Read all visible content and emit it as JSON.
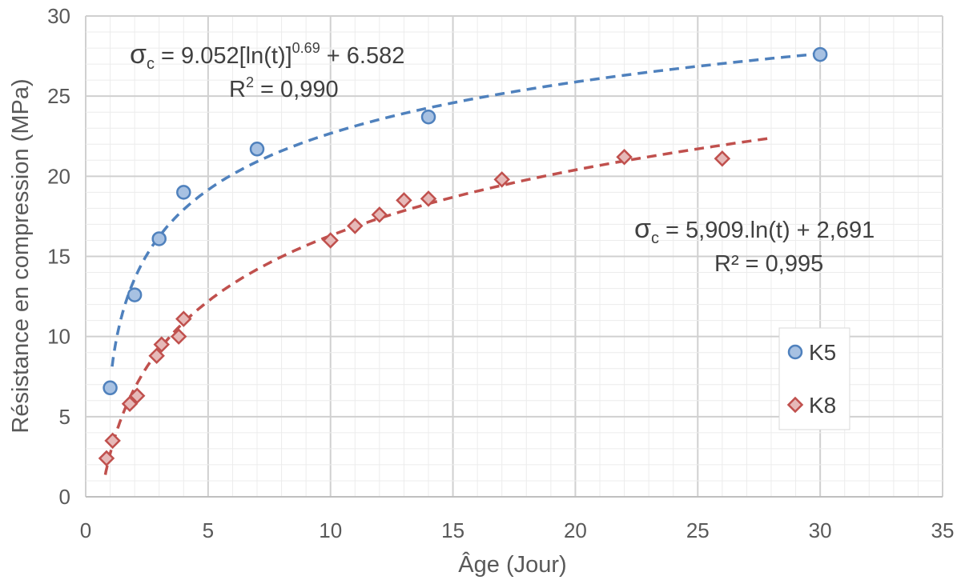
{
  "chart_data": {
    "type": "scatter",
    "xlabel": "Âge (Jour)",
    "ylabel": "Résistance en compression (MPa)",
    "xlim": [
      0,
      35
    ],
    "ylim": [
      0,
      30
    ],
    "x_ticks": [
      "0",
      "5",
      "10",
      "15",
      "20",
      "25",
      "30",
      "35"
    ],
    "y_ticks": [
      "0",
      "5",
      "10",
      "15",
      "20",
      "25",
      "30"
    ],
    "grid": "major and minor",
    "legend_position": "right",
    "series": [
      {
        "name": "K5",
        "marker": "circle",
        "color": "#4f81bd",
        "fill": "#a7c1e2",
        "points": [
          [
            1,
            6.8
          ],
          [
            2,
            12.6
          ],
          [
            3,
            16.1
          ],
          [
            4,
            19.0
          ],
          [
            7,
            21.7
          ],
          [
            14,
            23.7
          ],
          [
            30,
            27.6
          ]
        ],
        "trendline": {
          "kind": "power-log",
          "a": 9.052,
          "b": 0.69,
          "c": 6.582,
          "x_range": [
            1.08,
            30
          ],
          "equation": {
            "prefix": "σ",
            "sub": "c",
            "body": " = 9.052[ln(t)]",
            "sup": "0.69",
            "tail": " + 6.582"
          },
          "r2": {
            "base": "R",
            "sup": "2",
            "value": " = 0,990"
          }
        }
      },
      {
        "name": "K8",
        "marker": "diamond",
        "color": "#c0504d",
        "fill": "#e6b9b8",
        "points": [
          [
            0.85,
            2.4
          ],
          [
            1.1,
            3.5
          ],
          [
            1.8,
            5.8
          ],
          [
            2.1,
            6.3
          ],
          [
            2.9,
            8.8
          ],
          [
            3.1,
            9.5
          ],
          [
            3.8,
            10.0
          ],
          [
            4.0,
            11.1
          ],
          [
            10,
            16.0
          ],
          [
            11,
            16.9
          ],
          [
            12,
            17.6
          ],
          [
            13,
            18.5
          ],
          [
            14,
            18.6
          ],
          [
            17,
            19.8
          ],
          [
            22,
            21.2
          ],
          [
            26,
            21.1
          ]
        ],
        "trendline": {
          "kind": "log",
          "a": 5.909,
          "b": 2.691,
          "x_range": [
            0.8,
            28
          ],
          "equation": {
            "prefix": "σ",
            "sub": "c",
            "body": " = 5,909.ln(t) + 2,691"
          },
          "r2": {
            "text": "R² = 0,995"
          }
        }
      }
    ]
  }
}
